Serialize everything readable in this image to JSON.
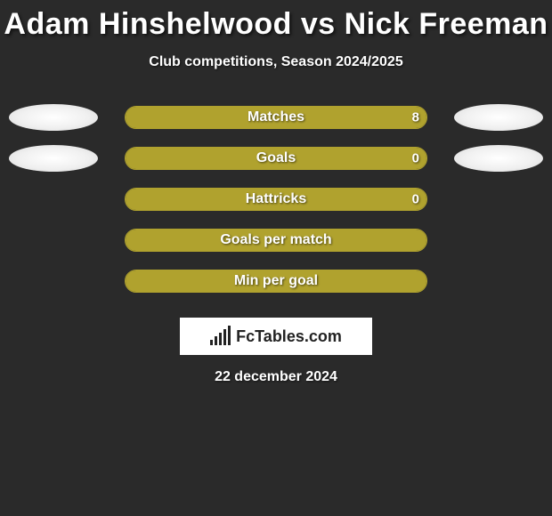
{
  "title": "Adam Hinshelwood vs Nick Freeman",
  "subtitle": "Club competitions, Season 2024/2025",
  "footer_logo_text": "FcTables.com",
  "footer_date": "22 december 2024",
  "colors": {
    "background": "#2a2a2a",
    "text": "#ffffff",
    "bar_fill": "#b0a22e",
    "bar_border": "#b0a22e",
    "avatar": "#f5f5f5"
  },
  "stats": [
    {
      "label": "Matches",
      "left_value": "",
      "right_value": "8",
      "left_pct": 0,
      "right_pct": 100,
      "show_left_avatar": true,
      "show_right_avatar": true
    },
    {
      "label": "Goals",
      "left_value": "",
      "right_value": "0",
      "left_pct": 0,
      "right_pct": 100,
      "show_left_avatar": true,
      "show_right_avatar": true
    },
    {
      "label": "Hattricks",
      "left_value": "",
      "right_value": "0",
      "left_pct": 0,
      "right_pct": 100,
      "show_left_avatar": false,
      "show_right_avatar": false
    },
    {
      "label": "Goals per match",
      "left_value": "",
      "right_value": "",
      "left_pct": 50,
      "right_pct": 50,
      "show_left_avatar": false,
      "show_right_avatar": false
    },
    {
      "label": "Min per goal",
      "left_value": "",
      "right_value": "",
      "left_pct": 50,
      "right_pct": 50,
      "show_left_avatar": false,
      "show_right_avatar": false
    }
  ]
}
